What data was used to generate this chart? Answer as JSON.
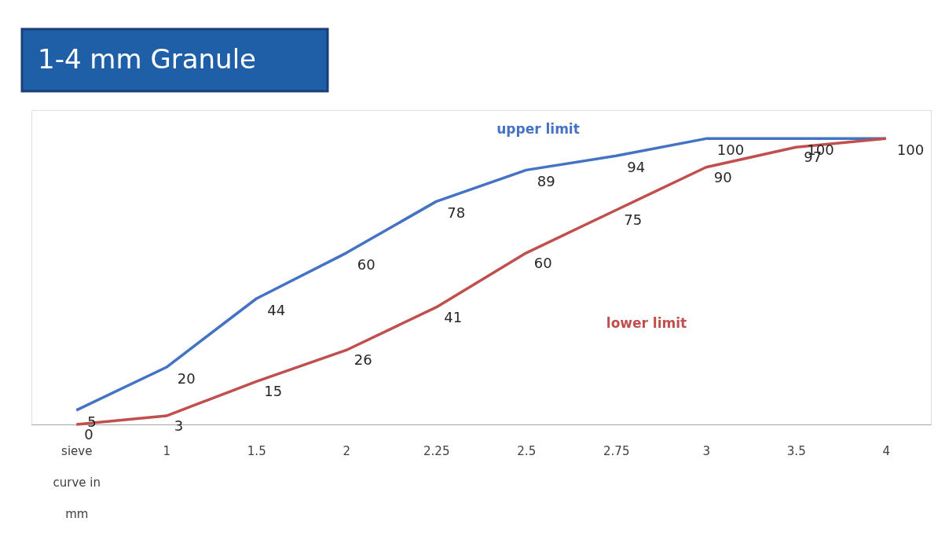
{
  "chart_data": {
    "type": "line",
    "title": "1-4 mm Granule",
    "categories": [
      "sieve curve in mm",
      "1",
      "1.5",
      "2",
      "2.25",
      "2.5",
      "2.75",
      "3",
      "3.5",
      "4"
    ],
    "series": [
      {
        "name": "upper limit",
        "color": "#4472c4",
        "values": [
          5,
          20,
          44,
          60,
          78,
          89,
          94,
          100,
          100,
          100
        ],
        "value_labels": [
          "5",
          "20",
          "44",
          "60",
          "78",
          "89",
          "94",
          "100",
          "100",
          "100"
        ]
      },
      {
        "name": "lower limit",
        "color": "#c0504d",
        "values": [
          0,
          3,
          15,
          26,
          41,
          60,
          75,
          90,
          97,
          100
        ],
        "value_labels": [
          "0",
          "3",
          "15",
          "26",
          "41",
          "60",
          "75",
          "90",
          "97",
          null
        ]
      }
    ],
    "ylim": [
      0,
      110
    ],
    "tick_labels": "x",
    "grid": false,
    "marker": "none",
    "line_style": "solid"
  }
}
